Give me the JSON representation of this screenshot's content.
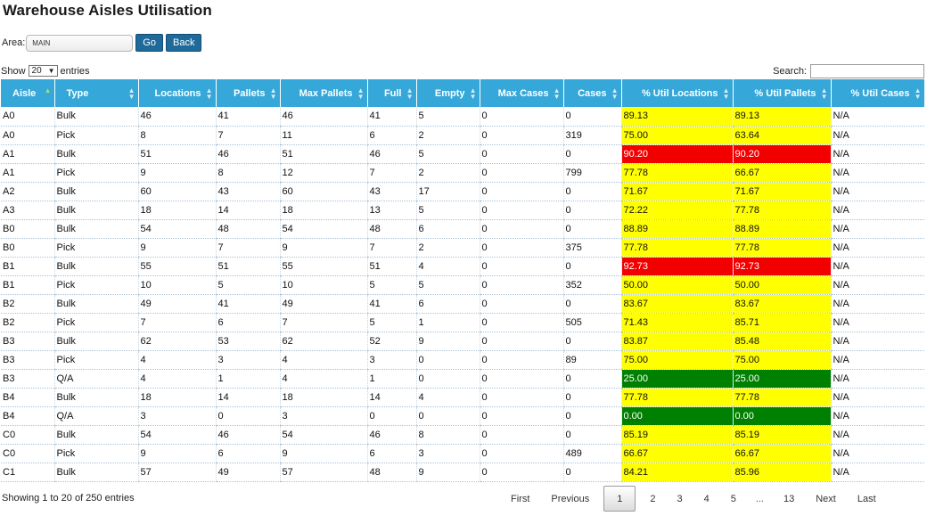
{
  "page": {
    "title": "Warehouse Aisles Utilisation"
  },
  "area": {
    "label": "Area:",
    "value": "MAIN",
    "go_label": "Go",
    "back_label": "Back"
  },
  "length": {
    "show_label": "Show",
    "value": "20",
    "entries_label": "entries"
  },
  "search": {
    "label": "Search:",
    "value": ""
  },
  "table": {
    "columns": [
      "Aisle",
      "Type",
      "Locations",
      "Pallets",
      "Max Pallets",
      "Full",
      "Empty",
      "Max Cases",
      "Cases",
      "% Util Locations",
      "% Util Pallets",
      "% Util Cases"
    ],
    "sorted_column": "Aisle",
    "status_colors": {
      "yellow": "#ffff00",
      "red": "#f20000",
      "green": "#008000"
    },
    "rows": [
      {
        "c": [
          "A0",
          "Bulk",
          "46",
          "41",
          "46",
          "41",
          "5",
          "0",
          "0",
          "89.13",
          "89.13",
          "N/A"
        ],
        "status": "yellow"
      },
      {
        "c": [
          "A0",
          "Pick",
          "8",
          "7",
          "11",
          "6",
          "2",
          "0",
          "319",
          "75.00",
          "63.64",
          "N/A"
        ],
        "status": "yellow"
      },
      {
        "c": [
          "A1",
          "Bulk",
          "51",
          "46",
          "51",
          "46",
          "5",
          "0",
          "0",
          "90.20",
          "90.20",
          "N/A"
        ],
        "status": "red"
      },
      {
        "c": [
          "A1",
          "Pick",
          "9",
          "8",
          "12",
          "7",
          "2",
          "0",
          "799",
          "77.78",
          "66.67",
          "N/A"
        ],
        "status": "yellow"
      },
      {
        "c": [
          "A2",
          "Bulk",
          "60",
          "43",
          "60",
          "43",
          "17",
          "0",
          "0",
          "71.67",
          "71.67",
          "N/A"
        ],
        "status": "yellow"
      },
      {
        "c": [
          "A3",
          "Bulk",
          "18",
          "14",
          "18",
          "13",
          "5",
          "0",
          "0",
          "72.22",
          "77.78",
          "N/A"
        ],
        "status": "yellow"
      },
      {
        "c": [
          "B0",
          "Bulk",
          "54",
          "48",
          "54",
          "48",
          "6",
          "0",
          "0",
          "88.89",
          "88.89",
          "N/A"
        ],
        "status": "yellow"
      },
      {
        "c": [
          "B0",
          "Pick",
          "9",
          "7",
          "9",
          "7",
          "2",
          "0",
          "375",
          "77.78",
          "77.78",
          "N/A"
        ],
        "status": "yellow"
      },
      {
        "c": [
          "B1",
          "Bulk",
          "55",
          "51",
          "55",
          "51",
          "4",
          "0",
          "0",
          "92.73",
          "92.73",
          "N/A"
        ],
        "status": "red"
      },
      {
        "c": [
          "B1",
          "Pick",
          "10",
          "5",
          "10",
          "5",
          "5",
          "0",
          "352",
          "50.00",
          "50.00",
          "N/A"
        ],
        "status": "yellow"
      },
      {
        "c": [
          "B2",
          "Bulk",
          "49",
          "41",
          "49",
          "41",
          "6",
          "0",
          "0",
          "83.67",
          "83.67",
          "N/A"
        ],
        "status": "yellow"
      },
      {
        "c": [
          "B2",
          "Pick",
          "7",
          "6",
          "7",
          "5",
          "1",
          "0",
          "505",
          "71.43",
          "85.71",
          "N/A"
        ],
        "status": "yellow"
      },
      {
        "c": [
          "B3",
          "Bulk",
          "62",
          "53",
          "62",
          "52",
          "9",
          "0",
          "0",
          "83.87",
          "85.48",
          "N/A"
        ],
        "status": "yellow"
      },
      {
        "c": [
          "B3",
          "Pick",
          "4",
          "3",
          "4",
          "3",
          "0",
          "0",
          "89",
          "75.00",
          "75.00",
          "N/A"
        ],
        "status": "yellow"
      },
      {
        "c": [
          "B3",
          "Q/A",
          "4",
          "1",
          "4",
          "1",
          "0",
          "0",
          "0",
          "25.00",
          "25.00",
          "N/A"
        ],
        "status": "green"
      },
      {
        "c": [
          "B4",
          "Bulk",
          "18",
          "14",
          "18",
          "14",
          "4",
          "0",
          "0",
          "77.78",
          "77.78",
          "N/A"
        ],
        "status": "yellow"
      },
      {
        "c": [
          "B4",
          "Q/A",
          "3",
          "0",
          "3",
          "0",
          "0",
          "0",
          "0",
          "0.00",
          "0.00",
          "N/A"
        ],
        "status": "green"
      },
      {
        "c": [
          "C0",
          "Bulk",
          "54",
          "46",
          "54",
          "46",
          "8",
          "0",
          "0",
          "85.19",
          "85.19",
          "N/A"
        ],
        "status": "yellow"
      },
      {
        "c": [
          "C0",
          "Pick",
          "9",
          "6",
          "9",
          "6",
          "3",
          "0",
          "489",
          "66.67",
          "66.67",
          "N/A"
        ],
        "status": "yellow"
      },
      {
        "c": [
          "C1",
          "Bulk",
          "57",
          "49",
          "57",
          "48",
          "9",
          "0",
          "0",
          "84.21",
          "85.96",
          "N/A"
        ],
        "status": "yellow"
      }
    ]
  },
  "footer": {
    "info": "Showing 1 to 20 of 250 entries",
    "pager": {
      "first": "First",
      "previous": "Previous",
      "pages": [
        "1",
        "2",
        "3",
        "4",
        "5"
      ],
      "ellipsis": "...",
      "last_page": "13",
      "next": "Next",
      "last": "Last",
      "current": "1"
    }
  }
}
